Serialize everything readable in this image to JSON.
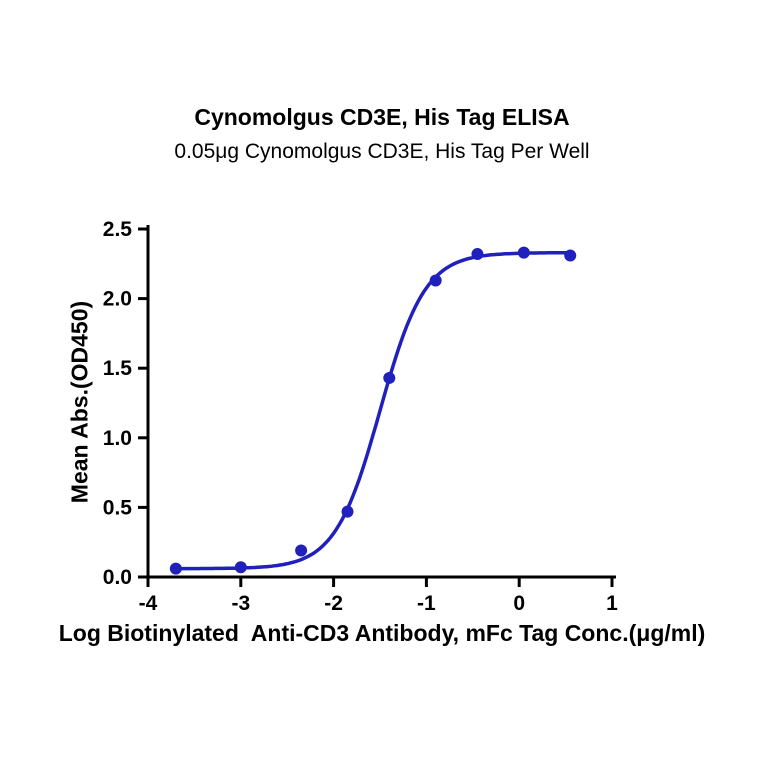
{
  "header": {
    "title": "Cynomolgus CD3E, His Tag ELISA",
    "subtitle": "0.05μg Cynomolgus CD3E, His Tag Per Well"
  },
  "chart_data": {
    "type": "scatter",
    "title": "Cynomolgus CD3E, His Tag ELISA",
    "subtitle": "0.05μg Cynomolgus CD3E, His Tag Per Well",
    "xlabel": "Log Biotinylated  Anti-CD3 Antibody, mFc Tag Conc.(μg/ml)",
    "ylabel": "Mean Abs.(OD450)",
    "xlim": [
      -4,
      1
    ],
    "ylim": [
      0,
      2.5
    ],
    "xticks": [
      -4,
      -3,
      -2,
      -1,
      0,
      1
    ],
    "yticks": [
      0.0,
      0.5,
      1.0,
      1.5,
      2.0,
      2.5
    ],
    "grid": false,
    "legend": null,
    "points": [
      {
        "x": -3.7,
        "y": 0.06
      },
      {
        "x": -3.0,
        "y": 0.07
      },
      {
        "x": -2.35,
        "y": 0.19
      },
      {
        "x": -1.85,
        "y": 0.47
      },
      {
        "x": -1.4,
        "y": 1.43
      },
      {
        "x": -0.9,
        "y": 2.13
      },
      {
        "x": -0.45,
        "y": 2.32
      },
      {
        "x": 0.05,
        "y": 2.33
      },
      {
        "x": 0.55,
        "y": 2.31
      }
    ],
    "fit_curve": {
      "model": "4PL",
      "bottom": 0.06,
      "top": 2.33,
      "log_ec50": -1.5,
      "hill": 1.8
    },
    "colors": {
      "series": "#2020bd",
      "axis": "#000000",
      "background": "#ffffff"
    }
  }
}
